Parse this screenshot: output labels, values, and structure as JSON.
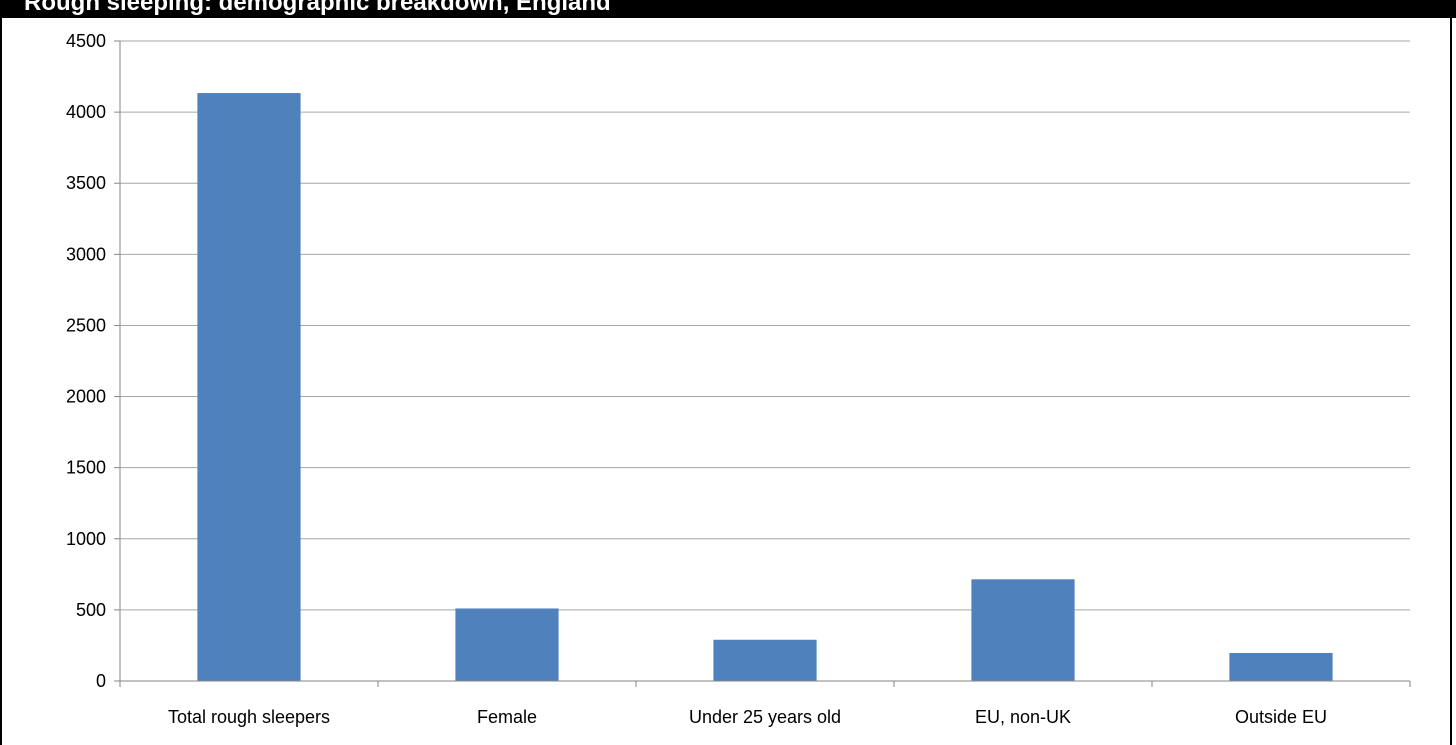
{
  "title": "Rough sleeping: demographic breakdown, England",
  "colors": {
    "bar": "#4F81BD",
    "gridline": "#A6A6A6",
    "axis": "#868686",
    "title_bar": "#000000"
  },
  "chart_data": {
    "type": "bar",
    "title": "Rough sleeping: demographic breakdown, England",
    "xlabel": "",
    "ylabel": "",
    "categories": [
      "Total rough sleepers",
      "Female",
      "Under 25 years old",
      "EU, non-UK",
      "Outside EU"
    ],
    "values": [
      4134,
      510,
      290,
      715,
      197
    ],
    "ylim": [
      0,
      4500
    ],
    "yticks": [
      0,
      500,
      1000,
      1500,
      2000,
      2500,
      3000,
      3500,
      4000,
      4500
    ],
    "grid": true,
    "legend": "none"
  }
}
